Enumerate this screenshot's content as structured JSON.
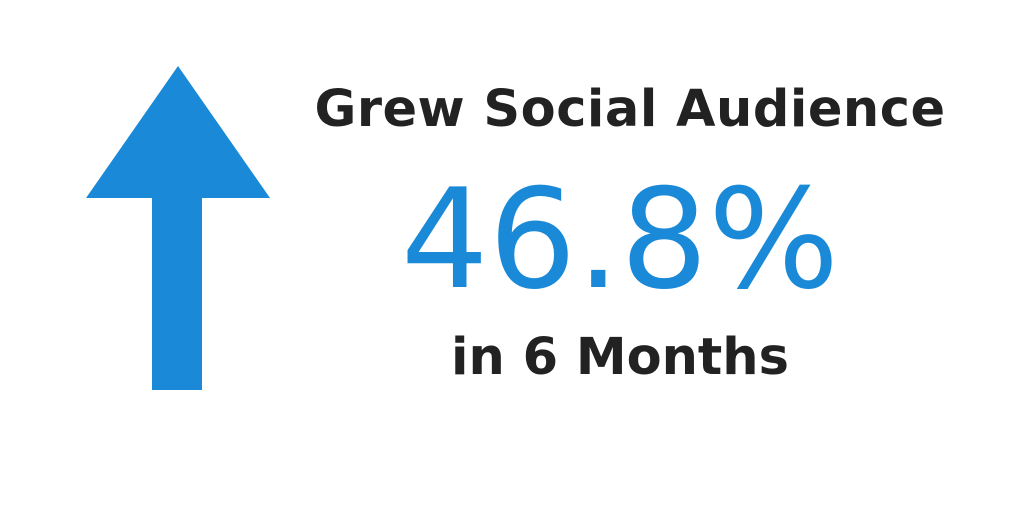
{
  "headline": "Grew Social Audience",
  "stat": "46.8%",
  "subline": "in 6 Months",
  "colors": {
    "accent": "#1a8ad8",
    "text": "#222222",
    "background": "#ffffff"
  },
  "icons": {
    "arrow": "up-arrow-icon"
  }
}
